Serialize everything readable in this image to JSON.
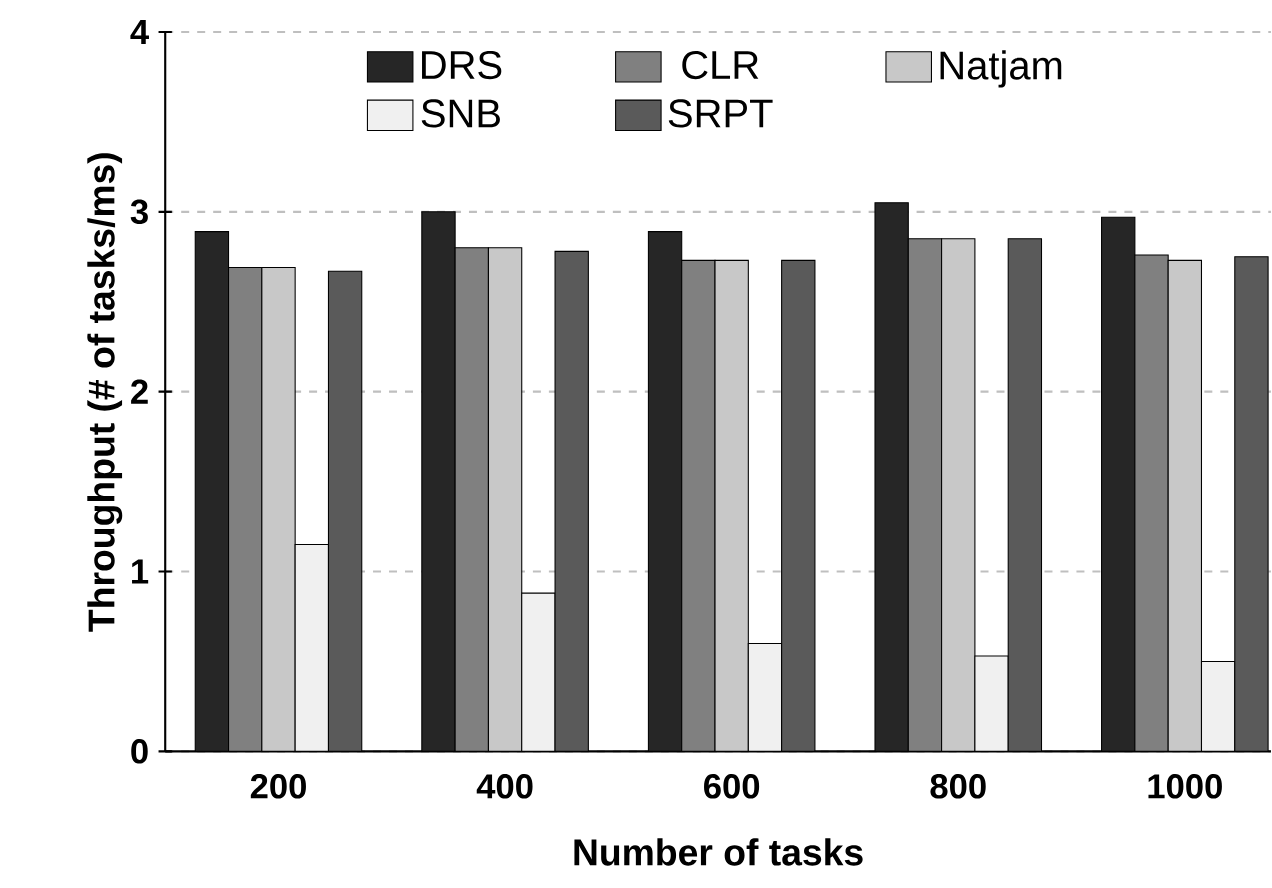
{
  "chart_data": {
    "type": "bar",
    "xlabel": "Number of tasks",
    "ylabel": "Throughput (# of tasks/ms)",
    "categories": [
      "200",
      "400",
      "600",
      "800",
      "1000"
    ],
    "series": [
      {
        "name": "DRS",
        "color": "#262626",
        "values": [
          2.89,
          3.0,
          2.89,
          3.05,
          2.97
        ]
      },
      {
        "name": "CLR",
        "color": "#808080",
        "values": [
          2.69,
          2.8,
          2.73,
          2.85,
          2.76
        ]
      },
      {
        "name": "Natjam",
        "color": "#c8c8c8",
        "values": [
          2.69,
          2.8,
          2.73,
          2.85,
          2.73
        ]
      },
      {
        "name": "SNB",
        "color": "#f0f0f0",
        "values": [
          1.15,
          0.88,
          0.6,
          0.53,
          0.5
        ]
      },
      {
        "name": "SRPT",
        "color": "#5a5a5a",
        "values": [
          2.67,
          2.78,
          2.73,
          2.85,
          2.75
        ]
      }
    ],
    "ylim": [
      0,
      4
    ],
    "yticks": [
      0,
      1,
      2,
      3,
      4
    ],
    "grid": "y",
    "legend": "top"
  }
}
